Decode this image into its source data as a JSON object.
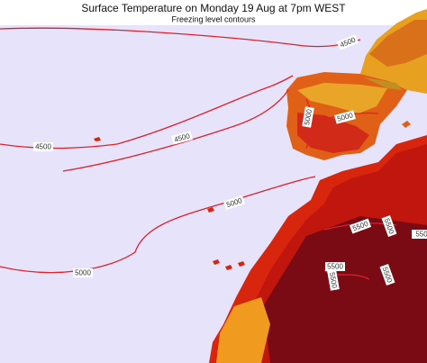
{
  "header": {
    "title": "Surface Temperature on Monday 19 Aug at 7pm WEST",
    "subtitle": "Freezing level contours"
  },
  "contour_labels": [
    "4500",
    "4500",
    "4500",
    "5000",
    "5000",
    "5000",
    "5000",
    "5500",
    "5500",
    "5500",
    "5500",
    "5500",
    "550"
  ]
}
